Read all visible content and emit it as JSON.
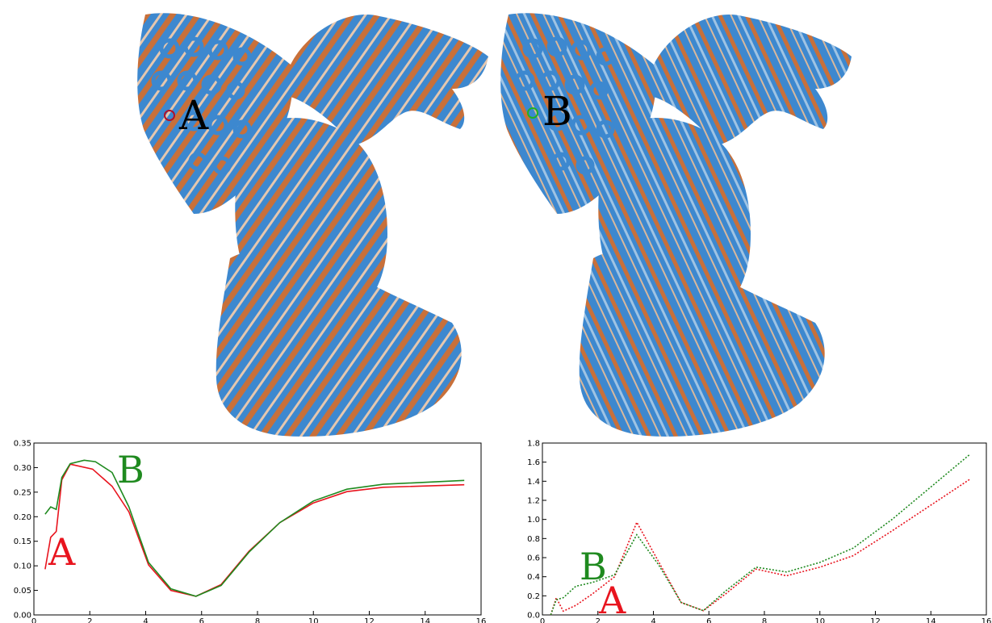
{
  "colors": {
    "blue": "#3d88cf",
    "orange": "#c8703a",
    "series_A": "#e8141e",
    "series_B": "#1f8a1f",
    "marker_A": "#b0102a",
    "marker_B": "#22b022"
  },
  "meshes": [
    {
      "label": "A",
      "marker_color": "#b0102a"
    },
    {
      "label": "B",
      "marker_color": "#22b022"
    }
  ],
  "chart_data": [
    {
      "type": "line",
      "title": "",
      "xlabel": "",
      "ylabel": "",
      "xlim": [
        0,
        16
      ],
      "ylim": [
        0,
        0.35
      ],
      "xticks": [
        "0",
        "2",
        "4",
        "6",
        "8",
        "10",
        "12",
        "14",
        "16"
      ],
      "yticks": [
        "0.00",
        "0.05",
        "0.10",
        "0.15",
        "0.20",
        "0.25",
        "0.30",
        "0.35"
      ],
      "line_style": "solid",
      "series": [
        {
          "name": "A",
          "color": "#e8141e",
          "x": [
            0.4,
            0.6,
            0.8,
            1.0,
            1.3,
            2.1,
            2.8,
            3.4,
            4.1,
            4.9,
            5.8,
            6.7,
            7.7,
            8.8,
            10.0,
            11.2,
            12.5,
            15.4
          ],
          "y": [
            0.093,
            0.158,
            0.17,
            0.275,
            0.307,
            0.297,
            0.262,
            0.21,
            0.102,
            0.05,
            0.038,
            0.062,
            0.13,
            0.188,
            0.228,
            0.251,
            0.26,
            0.265
          ]
        },
        {
          "name": "B",
          "color": "#1f8a1f",
          "x": [
            0.4,
            0.6,
            0.8,
            1.0,
            1.3,
            1.8,
            2.2,
            2.8,
            3.4,
            4.1,
            4.9,
            5.8,
            6.7,
            7.7,
            8.8,
            10.0,
            11.2,
            12.5,
            15.4
          ],
          "y": [
            0.205,
            0.22,
            0.215,
            0.28,
            0.308,
            0.315,
            0.312,
            0.29,
            0.22,
            0.107,
            0.053,
            0.038,
            0.06,
            0.128,
            0.188,
            0.232,
            0.256,
            0.266,
            0.274
          ]
        }
      ]
    },
    {
      "type": "line",
      "title": "",
      "xlabel": "",
      "ylabel": "",
      "xlim": [
        0,
        16
      ],
      "ylim": [
        0,
        1.8
      ],
      "xticks": [
        "0",
        "2",
        "4",
        "6",
        "8",
        "10",
        "12",
        "14",
        "16"
      ],
      "yticks": [
        "0.0",
        "0.2",
        "0.4",
        "0.6",
        "0.8",
        "1.0",
        "1.2",
        "1.4",
        "1.6",
        "1.8"
      ],
      "line_style": "dotted",
      "series": [
        {
          "name": "A",
          "color": "#e8141e",
          "x": [
            0.3,
            0.5,
            0.75,
            1.2,
            1.8,
            2.6,
            3.4,
            4.2,
            5.0,
            5.8,
            6.6,
            7.7,
            8.8,
            10.0,
            11.2,
            12.6,
            15.4
          ],
          "y": [
            0.0,
            0.18,
            0.04,
            0.1,
            0.22,
            0.4,
            0.97,
            0.55,
            0.13,
            0.045,
            0.22,
            0.48,
            0.41,
            0.5,
            0.62,
            0.88,
            1.42
          ]
        },
        {
          "name": "B",
          "color": "#1f8a1f",
          "x": [
            0.3,
            0.5,
            0.75,
            1.2,
            1.8,
            2.6,
            3.4,
            4.2,
            5.0,
            5.8,
            6.6,
            7.7,
            8.8,
            10.0,
            11.2,
            12.6,
            15.4
          ],
          "y": [
            0.0,
            0.16,
            0.18,
            0.3,
            0.34,
            0.42,
            0.84,
            0.52,
            0.13,
            0.045,
            0.25,
            0.5,
            0.45,
            0.55,
            0.7,
            1.0,
            1.68
          ]
        }
      ]
    }
  ]
}
